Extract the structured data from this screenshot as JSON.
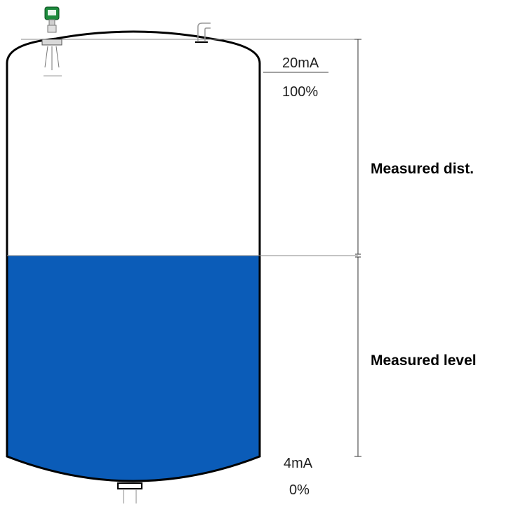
{
  "labels": {
    "top_current": "20mA",
    "top_percent": "100%",
    "bottom_current": "4mA",
    "bottom_percent": "0%",
    "distance": "Measured dist.",
    "level": "Measured level"
  },
  "fill_level_fraction": 0.5,
  "colors": {
    "liquid": "#0b5cb8",
    "outline": "#000000",
    "guide_line": "#888888",
    "sensor_housing": "#1d8a3c"
  },
  "icons": {
    "sensor": "radar-level-transmitter-icon",
    "nozzle": "pipe-nozzle-icon",
    "drain": "drain-outlet-icon"
  }
}
